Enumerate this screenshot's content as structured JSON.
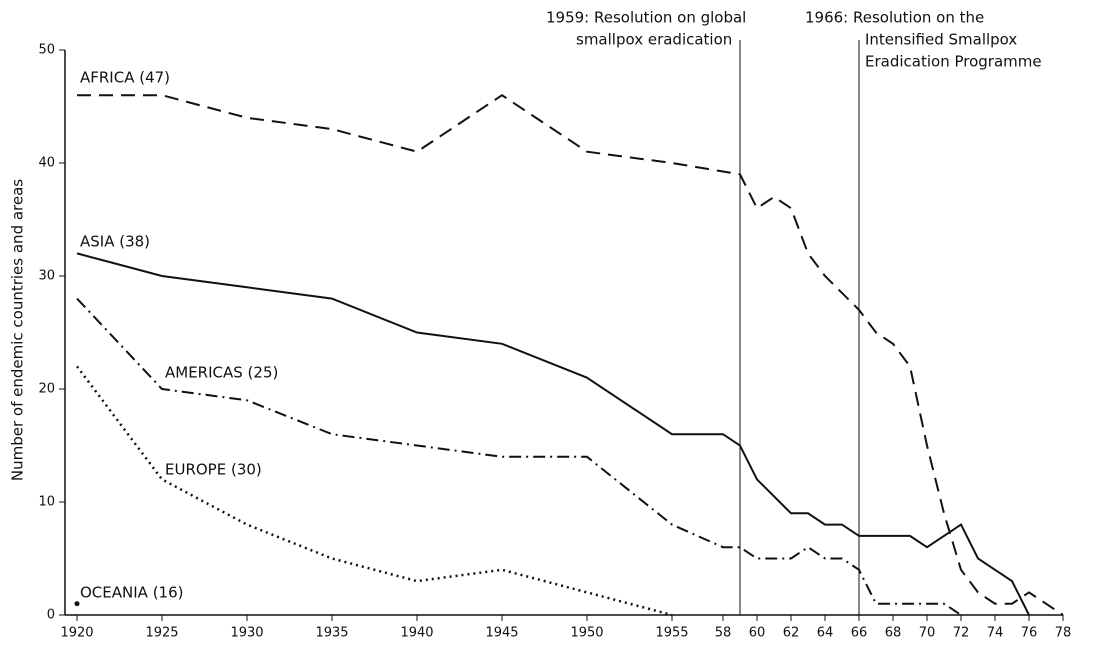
{
  "chart_data": {
    "type": "line",
    "y_label": "Number of endemic countries and areas",
    "xlim": [
      1920,
      1978
    ],
    "ylim": [
      0,
      50
    ],
    "yticks": [
      0,
      10,
      20,
      30,
      40,
      50
    ],
    "xticks": [
      1920,
      1925,
      1930,
      1935,
      1940,
      1945,
      1950,
      1955,
      {
        "value": 1958,
        "label": "58"
      },
      {
        "value": 1960,
        "label": "60"
      },
      {
        "value": 1962,
        "label": "62"
      },
      {
        "value": 1964,
        "label": "64"
      },
      {
        "value": 1966,
        "label": "66"
      },
      {
        "value": 1968,
        "label": "68"
      },
      {
        "value": 1970,
        "label": "70"
      },
      {
        "value": 1972,
        "label": "72"
      },
      {
        "value": 1974,
        "label": "74"
      },
      {
        "value": 1976,
        "label": "76"
      },
      {
        "value": 1978,
        "label": "78"
      }
    ],
    "annotations": [
      {
        "x": 1959,
        "text": [
          "1959: Resolution on global",
          "smallpox eradication"
        ]
      },
      {
        "x": 1966,
        "text": [
          "1966: Resolution on the",
          "Intensified Smallpox",
          "Eradication Programme"
        ]
      }
    ],
    "series": [
      {
        "name": "AFRICA (47)",
        "color": "#111",
        "dash": "14 8",
        "x": [
          1920,
          1925,
          1930,
          1935,
          1940,
          1945,
          1950,
          1955,
          1959,
          1960,
          1961,
          1962,
          1963,
          1964,
          1966,
          1967,
          1968,
          1969,
          1970,
          1971,
          1972,
          1973,
          1974,
          1975,
          1976,
          1977,
          1978
        ],
        "values": [
          46,
          46,
          44,
          43,
          41,
          46,
          41,
          40,
          39,
          36,
          37,
          36,
          32,
          30,
          27,
          25,
          24,
          22,
          15,
          9,
          4,
          2,
          1,
          1,
          2,
          1,
          0
        ]
      },
      {
        "name": "ASIA (38)",
        "color": "#111",
        "dash": "none",
        "x": [
          1920,
          1925,
          1930,
          1935,
          1940,
          1945,
          1950,
          1955,
          1958,
          1959,
          1960,
          1962,
          1963,
          1964,
          1965,
          1966,
          1967,
          1968,
          1969,
          1970,
          1971,
          1972,
          1973,
          1974,
          1975,
          1976
        ],
        "values": [
          32,
          30,
          29,
          28,
          25,
          24,
          21,
          16,
          16,
          15,
          12,
          9,
          9,
          8,
          8,
          7,
          7,
          7,
          7,
          6,
          7,
          8,
          5,
          4,
          3,
          0
        ]
      },
      {
        "name": "AMERICAS (25)",
        "color": "#111",
        "dash": "12 5 2 5",
        "x": [
          1920,
          1925,
          1930,
          1935,
          1940,
          1945,
          1950,
          1955,
          1958,
          1959,
          1960,
          1961,
          1962,
          1963,
          1964,
          1965,
          1966,
          1967,
          1968,
          1969,
          1970,
          1971,
          1972
        ],
        "values": [
          28,
          20,
          19,
          16,
          15,
          14,
          14,
          8,
          6,
          6,
          5,
          5,
          5,
          6,
          5,
          5,
          4,
          1,
          1,
          1,
          1,
          1,
          0
        ]
      },
      {
        "name": "EUROPE (30)",
        "color": "#111",
        "dash": "2 4",
        "x": [
          1920,
          1925,
          1930,
          1935,
          1940,
          1945,
          1950,
          1955
        ],
        "values": [
          22,
          12,
          8,
          5,
          3,
          4,
          2,
          0
        ]
      },
      {
        "name": "OCEANIA (16)",
        "color": "#111",
        "dash": "none",
        "x": [
          1920
        ],
        "values": [
          1
        ]
      }
    ]
  }
}
